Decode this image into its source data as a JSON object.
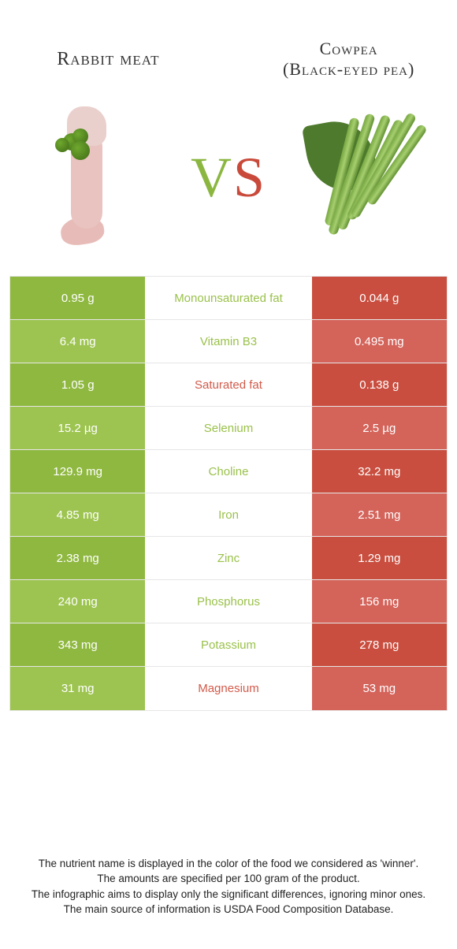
{
  "colors": {
    "left_food": "#9ac14b",
    "right_food": "#d25a4a",
    "left_cell_dark": "#8fb840",
    "left_cell_light": "#9dc450",
    "right_cell_dark": "#c94e3f",
    "right_cell_light": "#d4635a",
    "mid_bg": "#ffffff",
    "border": "#e6e6e6"
  },
  "header": {
    "left_title": "Rabbit meat",
    "right_title_line1": "Cowpea",
    "right_title_line2": "(Black-eyed pea)",
    "vs_v": "V",
    "vs_s": "S"
  },
  "comparison": {
    "rows": [
      {
        "nutrient": "Monounsaturated fat",
        "left": "0.95 g",
        "right": "0.044 g",
        "winner": "left"
      },
      {
        "nutrient": "Vitamin B3",
        "left": "6.4 mg",
        "right": "0.495 mg",
        "winner": "left"
      },
      {
        "nutrient": "Saturated fat",
        "left": "1.05 g",
        "right": "0.138 g",
        "winner": "right"
      },
      {
        "nutrient": "Selenium",
        "left": "15.2 µg",
        "right": "2.5 µg",
        "winner": "left"
      },
      {
        "nutrient": "Choline",
        "left": "129.9 mg",
        "right": "32.2 mg",
        "winner": "left"
      },
      {
        "nutrient": "Iron",
        "left": "4.85 mg",
        "right": "2.51 mg",
        "winner": "left"
      },
      {
        "nutrient": "Zinc",
        "left": "2.38 mg",
        "right": "1.29 mg",
        "winner": "left"
      },
      {
        "nutrient": "Phosphorus",
        "left": "240 mg",
        "right": "156 mg",
        "winner": "left"
      },
      {
        "nutrient": "Potassium",
        "left": "343 mg",
        "right": "278 mg",
        "winner": "left"
      },
      {
        "nutrient": "Magnesium",
        "left": "31 mg",
        "right": "53 mg",
        "winner": "right"
      }
    ]
  },
  "footer": {
    "line1": "The nutrient name is displayed in the color of the food we considered as 'winner'.",
    "line2": "The amounts are specified per 100 gram of the product.",
    "line3": "The infographic aims to display only the significant differences, ignoring minor ones.",
    "line4": "The main source of information is USDA Food Composition Database."
  }
}
